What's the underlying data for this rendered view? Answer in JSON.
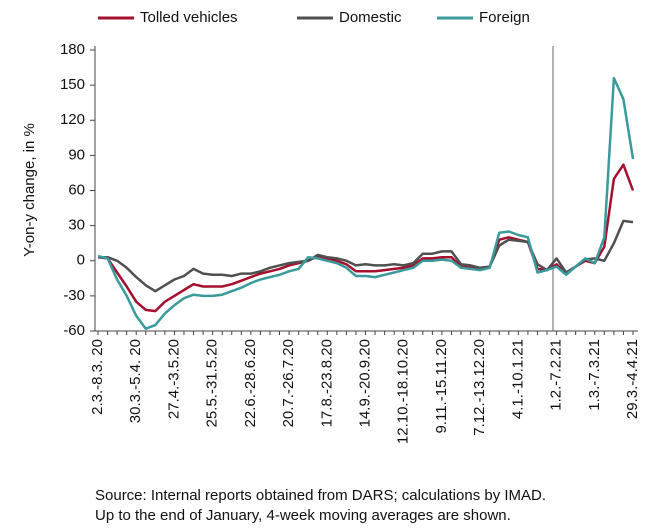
{
  "chart_data": {
    "type": "line",
    "y_label": "Y-on-y change, in %",
    "notes": [
      "Source: Internal reports obtained from DARS; calculations by IMAD.",
      "Up to the end of January, 4-week moving averages are shown."
    ],
    "categories": [
      "2.3.-8.3. 20",
      null,
      null,
      null,
      "30.3.-5.4. 20",
      null,
      null,
      null,
      "27.4.-3.5.20",
      null,
      null,
      null,
      "25.5.-31.5.20",
      null,
      null,
      null,
      "22.6.-28.6.20",
      null,
      null,
      null,
      "20.7.-26.7.20",
      null,
      null,
      null,
      "17.8.-23.8.20",
      null,
      null,
      null,
      "14.9.-20.9.20",
      null,
      null,
      null,
      "12.10.-18.10.20",
      null,
      null,
      null,
      "9.11.-15.11.20",
      null,
      null,
      null,
      "7.12.-13.12.20",
      null,
      null,
      null,
      "4.1.-10.1.21",
      null,
      null,
      null,
      "1.2.-7.2.21",
      null,
      null,
      null,
      "1.3.-7.3.21",
      null,
      null,
      null,
      "29.3.-4.4.21"
    ],
    "series": [
      {
        "name": "Tolled vehicles",
        "color": "#a5102e",
        "values": [
          3,
          2,
          -10,
          -22,
          -35,
          -42,
          -43,
          -35,
          -30,
          -25,
          -20,
          -22,
          -22,
          -22,
          -20,
          -17,
          -14,
          -11,
          -9,
          -7,
          -4,
          -2,
          0,
          4,
          2,
          0,
          -3,
          -9,
          -9,
          -9,
          -8,
          -7,
          -6,
          -4,
          2,
          2,
          3,
          3,
          -5,
          -6,
          -7,
          -5,
          18,
          20,
          18,
          16,
          -7,
          -8,
          -3,
          -11,
          -5,
          0,
          -2,
          12,
          70,
          82,
          60
        ]
      },
      {
        "name": "Domestic",
        "color": "#505050",
        "values": [
          3,
          3,
          0,
          -6,
          -14,
          -21,
          -26,
          -21,
          -16,
          -13,
          -7,
          -11,
          -12,
          -12,
          -13,
          -11,
          -11,
          -9,
          -6,
          -4,
          -2,
          -1,
          0,
          5,
          3,
          2,
          0,
          -4,
          -3,
          -4,
          -4,
          -3,
          -4,
          -2,
          6,
          6,
          8,
          8,
          -3,
          -4,
          -6,
          -5,
          13,
          18,
          17,
          16,
          -3,
          -8,
          2,
          -10,
          -5,
          1,
          2,
          0,
          15,
          34,
          33
        ]
      },
      {
        "name": "Foreign",
        "color": "#3a9a9c",
        "values": [
          4,
          2,
          -16,
          -30,
          -47,
          -58,
          -55,
          -45,
          -38,
          -32,
          -29,
          -30,
          -30,
          -29,
          -26,
          -23,
          -19,
          -16,
          -14,
          -12,
          -9,
          -7,
          3,
          2,
          0,
          -2,
          -6,
          -13,
          -13,
          -14,
          -12,
          -10,
          -8,
          -6,
          0,
          0,
          1,
          0,
          -6,
          -7,
          -8,
          -6,
          24,
          25,
          22,
          20,
          -10,
          -8,
          -5,
          -12,
          -5,
          2,
          -2,
          20,
          156,
          138,
          87
        ]
      }
    ],
    "ylim": [
      -60,
      180
    ],
    "yticks": [
      -60,
      -30,
      0,
      30,
      60,
      90,
      120,
      150,
      180
    ]
  }
}
